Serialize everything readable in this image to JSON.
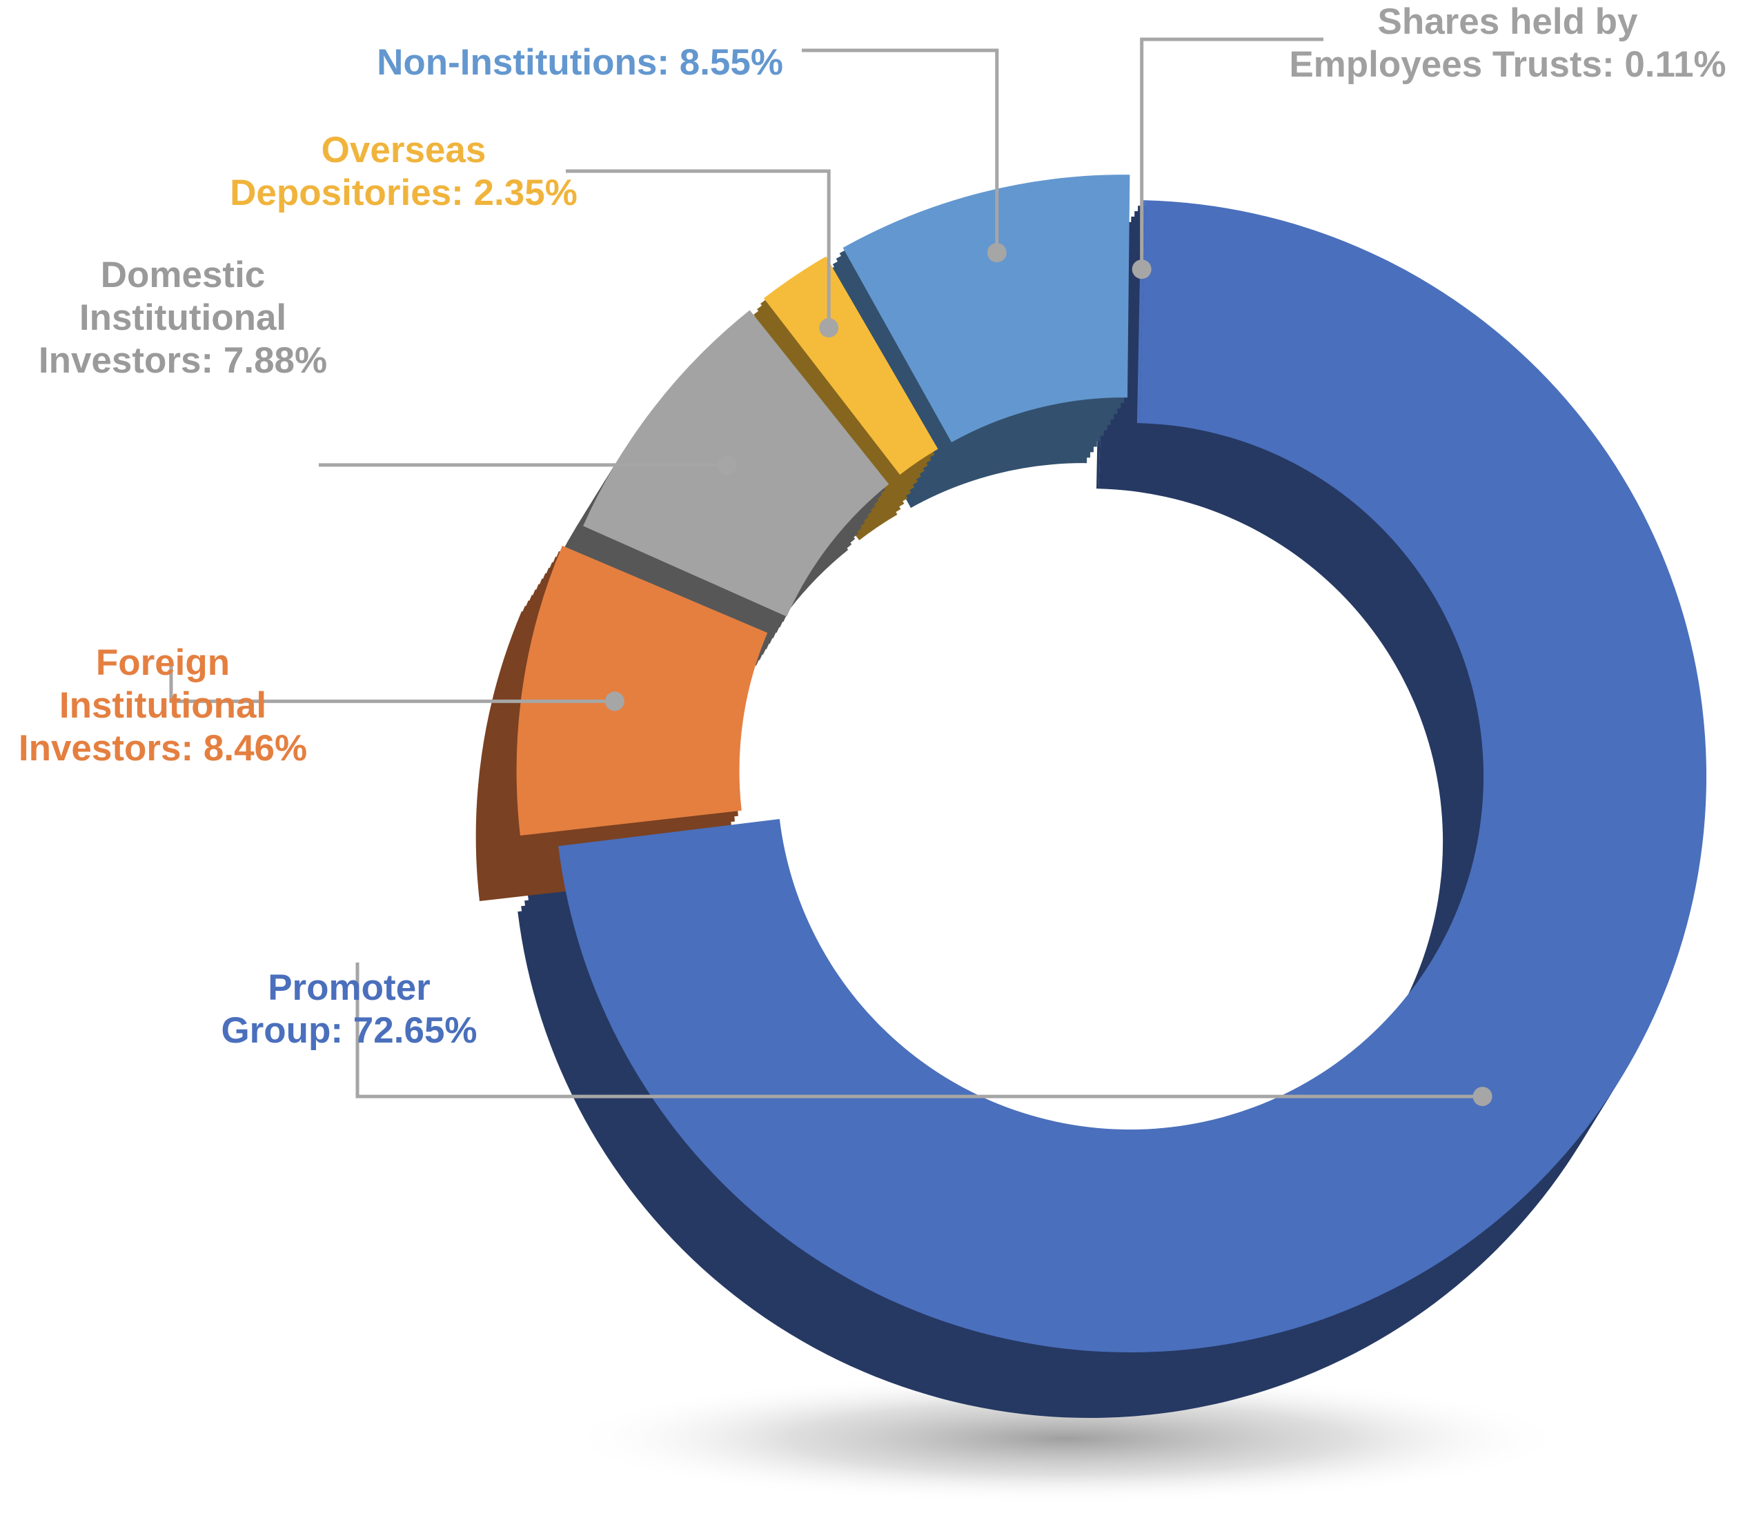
{
  "chart_data": {
    "type": "pie",
    "style": "3d-donut",
    "exploded": true,
    "legend": "none",
    "data_labels": "outside, with leader lines",
    "slices": [
      {
        "name": "Promoter Group",
        "value": 72.65,
        "label_lines": [
          "Promoter",
          "Group: 72.65%"
        ],
        "color": "#4A6FBC",
        "side_color": "#263963",
        "label_color": "#4A6FBC"
      },
      {
        "name": "Foreign Institutional Investors",
        "value": 8.46,
        "label_lines": [
          "Foreign",
          "Institutional",
          "Investors: 8.46%"
        ],
        "color": "#E47F40",
        "side_color": "#7A4122",
        "label_color": "#E47F40"
      },
      {
        "name": "Domestic Institutional Investors",
        "value": 7.88,
        "label_lines": [
          "Domestic",
          "Institutional",
          "Investors: 7.88%"
        ],
        "color": "#A3A3A3",
        "side_color": "#575757",
        "label_color": "#9A9A9A"
      },
      {
        "name": "Overseas Depositories",
        "value": 2.35,
        "label_lines": [
          "Overseas",
          "Depositories: 2.35%"
        ],
        "color": "#F5BC3B",
        "side_color": "#86661E",
        "label_color": "#F0B43C"
      },
      {
        "name": "Non-Institutions",
        "value": 8.55,
        "label_lines": [
          "Non-Institutions: 8.55%"
        ],
        "color": "#6397CF",
        "side_color": "#33506E",
        "label_color": "#6397CF"
      },
      {
        "name": "Shares held by Employees Trusts",
        "value": 0.11,
        "label_lines": [
          "Shares held by",
          "Employees Trusts: 0.11%"
        ],
        "color": "#4A6FBC",
        "side_color": "#263963",
        "label_color": "#A0A0A0"
      }
    ],
    "colors": {
      "leader_line": "#A6A6A6",
      "shadow": "#9c9c9c"
    }
  }
}
